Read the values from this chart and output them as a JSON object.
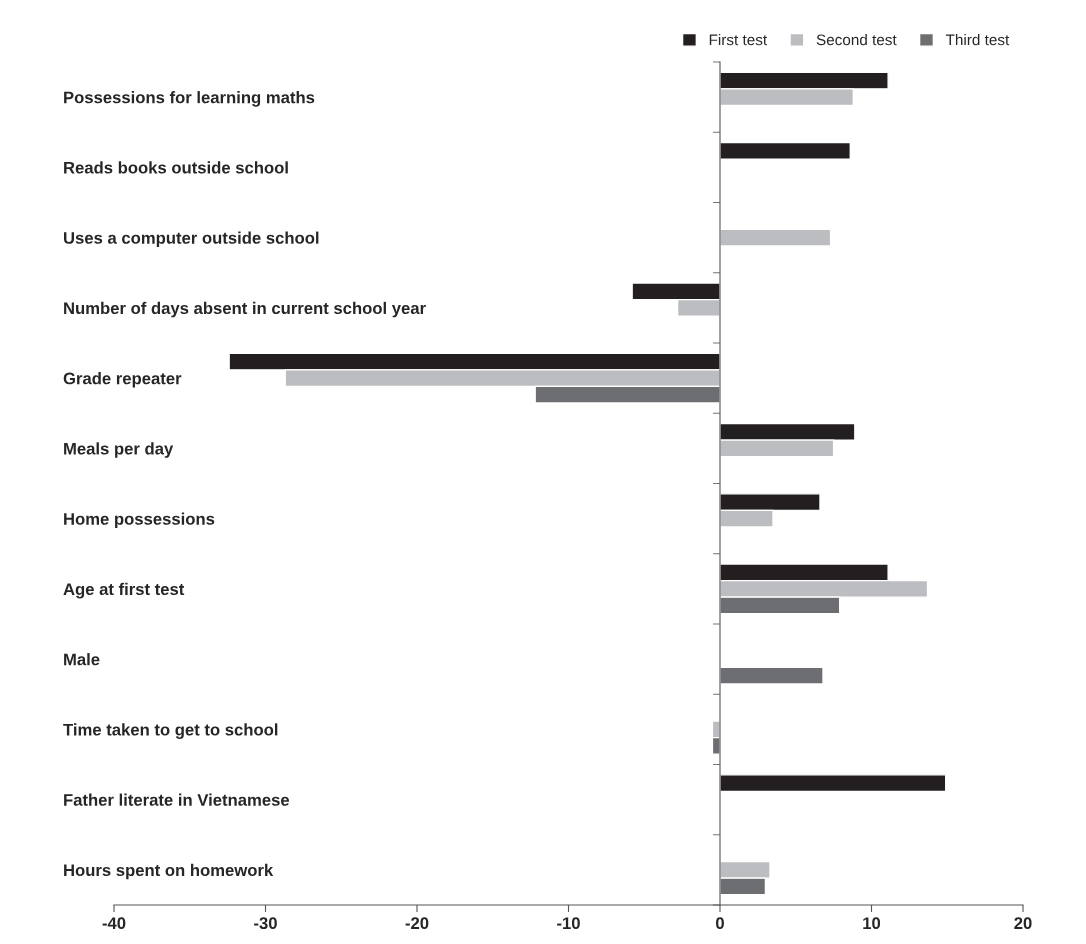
{
  "chart_data": {
    "type": "bar",
    "orientation": "horizontal",
    "legend": "top right",
    "categories": [
      "Possessions for learning maths",
      "Reads books outside school",
      "Uses a computer outside school",
      "Number of days absent in current school year",
      "Grade repeater",
      "Meals per day",
      "Home possessions",
      "Age at first test",
      "Male",
      "Time taken to get to school",
      "Father literate in Vietnamese",
      "Hours spent on homework"
    ],
    "series": [
      {
        "name": "First test",
        "color": "#231f20",
        "values": [
          11.1,
          8.6,
          null,
          -5.8,
          -32.4,
          8.9,
          6.6,
          11.1,
          null,
          null,
          14.9,
          null
        ]
      },
      {
        "name": "Second test",
        "color": "#bcbdc0",
        "values": [
          8.8,
          null,
          7.3,
          -2.8,
          -28.7,
          7.5,
          3.5,
          13.7,
          null,
          -0.5,
          null,
          3.3
        ]
      },
      {
        "name": "Third test",
        "color": "#6d6e71",
        "values": [
          null,
          null,
          null,
          null,
          -12.2,
          null,
          null,
          7.9,
          6.8,
          -0.5,
          null,
          3.0
        ]
      }
    ],
    "xlim": [
      -40,
      20
    ],
    "xticks": [
      -40,
      -30,
      -20,
      -10,
      0,
      10,
      20
    ]
  }
}
